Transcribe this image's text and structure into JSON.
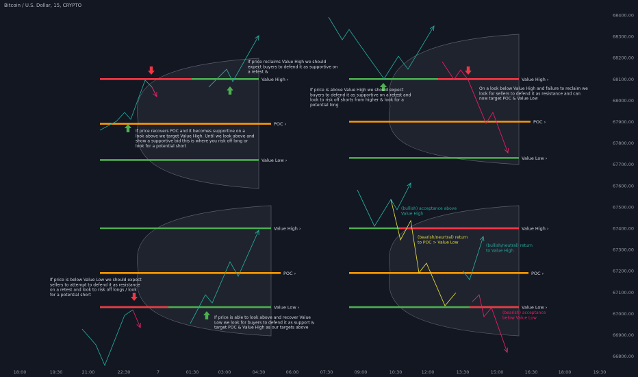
{
  "header": {
    "title": "Bitcoin / U.S. Dollar, 15, CRYPTO"
  },
  "colors": {
    "background": "#131722",
    "value_high": "#4caf50",
    "value_low": "#4caf50",
    "poc": "#ff9800",
    "red": "#f23645",
    "green_arrow": "#4caf50",
    "teal": "#26a69a",
    "pink": "#e91e63",
    "yellow": "#e0d93a",
    "text": "#d1d4dc",
    "axis_text": "#9598a1",
    "profile_fill": "#2a2e39",
    "profile_stroke": "#5d606b"
  },
  "chart_data": {
    "type": "line",
    "title": "Bitcoin / U.S. Dollar, 15, CRYPTO",
    "grid": false,
    "y_axis": {
      "ticks": [
        68400,
        68300,
        68200,
        68100,
        68000,
        67900,
        67800,
        67700,
        67600,
        67500,
        67400,
        67300,
        67200,
        67100,
        67000,
        66900,
        66800
      ],
      "tick_labels": [
        "68400.00",
        "68300.00",
        "68200.00",
        "68100.00",
        "68000.00",
        "67900.00",
        "67800.00",
        "67700.00",
        "67600.00",
        "67500.00",
        "67400.00",
        "67300.00",
        "67200.00",
        "67100.00",
        "67000.00",
        "66900.00",
        "66800.00"
      ]
    },
    "x_axis": {
      "tick_labels": [
        "18:00",
        "19:30",
        "21:00",
        "22:30",
        "7",
        "01:30",
        "03:00",
        "04:30",
        "06:00",
        "07:30",
        "09:00",
        "10:30",
        "12:00",
        "13:30",
        "15:00",
        "16:30",
        "18:00",
        "19:30"
      ]
    },
    "panels": [
      {
        "levels": {
          "value_high": "Value High",
          "poc": "POC",
          "value_low": "Value Low"
        },
        "annotations": [
          "If price reclaims  Value High we should expect buyers to defend it as supportive on a retest  &",
          "If price recovers POC and it becomes supportive on a look above we target Value High. Until we look above and show a supportive bid this is where you risk off long or look for a potential short"
        ]
      },
      {
        "levels": {
          "value_high": "Value High",
          "poc": "POC",
          "value_low": "Value Low"
        },
        "annotations": [
          "If price is above Value High we should expect buyers to defend it as supportive on a retest and look to risk off shorts from higher & look for a potential long",
          "On a look below Value High and failure to reclaim we look for sellers to defend it as resistance and can now target POC & Value Low"
        ]
      },
      {
        "levels": {
          "value_high": "Value High",
          "poc": "POC",
          "value_low": "Value Low"
        },
        "annotations": [
          "If price is below Value Low we should expect sellers to attempt to defend it as resistance on a retest and look to risk off longs / look for a potential short",
          "If price is able to look above and recover Value Low we look for buyers to defend it as support & target POC & Value High as our targets above"
        ]
      },
      {
        "levels": {
          "value_high": "Value High",
          "poc": "POC",
          "value_low": "Value Low"
        },
        "annotations": [
          "(bullish) acceptance above Value High",
          "(bearish/neurtral) return to POC  > Value Low",
          "(bullish/neutral) return to  Value High",
          "(bearish) acceptance below Value Low"
        ]
      }
    ]
  }
}
